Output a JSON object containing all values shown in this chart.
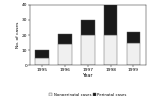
{
  "years": [
    "1995",
    "1996",
    "1997",
    "1998",
    "1999"
  ],
  "nonperinatal": [
    5,
    14,
    20,
    20,
    15
  ],
  "perinatal": [
    5,
    7,
    10,
    20,
    7
  ],
  "bar_color_nonperinatal": "#f0f0f0",
  "bar_color_perinatal": "#1a1a1a",
  "bar_edgecolor": "#555555",
  "ylabel": "No. of cases",
  "xlabel": "Year",
  "ylim": [
    0,
    40
  ],
  "yticks": [
    0,
    10,
    20,
    30,
    40
  ],
  "legend_labels": [
    "Nonperinatal cases",
    "Perinatal cases"
  ],
  "background_color": "#ffffff"
}
